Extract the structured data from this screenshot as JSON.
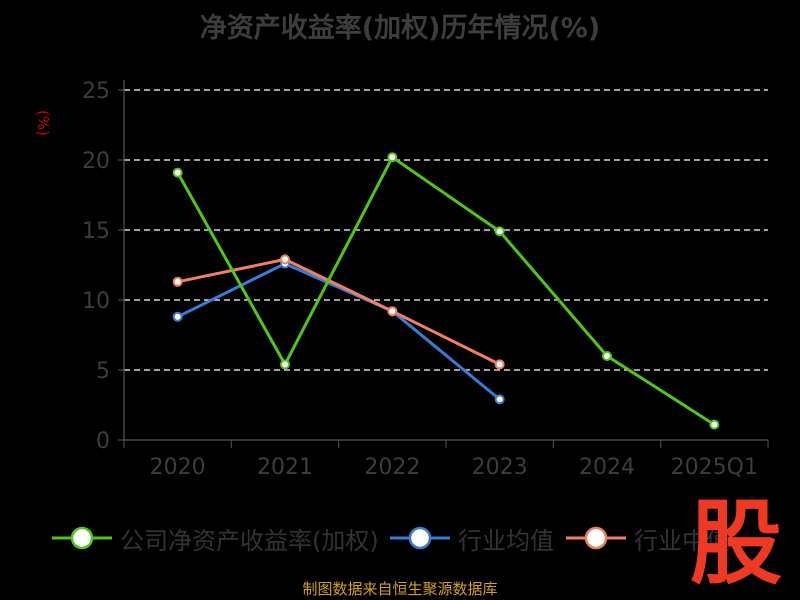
{
  "chart_data": {
    "type": "line",
    "title": "净资产收益率(加权)历年情况(%)",
    "ylabel": "(%)",
    "xlabel": "",
    "categories": [
      "2020",
      "2021",
      "2022",
      "2023",
      "2024",
      "2025Q1"
    ],
    "yticks": [
      "0",
      "5",
      "10",
      "15",
      "20",
      "25"
    ],
    "ylim": [
      0,
      25
    ],
    "grid": "dashed horizontal",
    "legend_position": "bottom",
    "series": [
      {
        "name": "公司净资产收益率(加权)",
        "color": "#52c41a",
        "values": [
          19.1,
          5.4,
          20.2,
          14.9,
          6.0,
          1.1
        ]
      },
      {
        "name": "行业均值",
        "color": "#3a7bd5",
        "values": [
          8.8,
          12.6,
          9.2,
          2.9,
          null,
          null
        ]
      },
      {
        "name": "行业中值",
        "color": "#f08060",
        "values": [
          11.3,
          12.9,
          9.2,
          5.4,
          null,
          null
        ]
      }
    ]
  },
  "source_note": "制图数据来自恒生聚源数据库",
  "logo_text": "股"
}
